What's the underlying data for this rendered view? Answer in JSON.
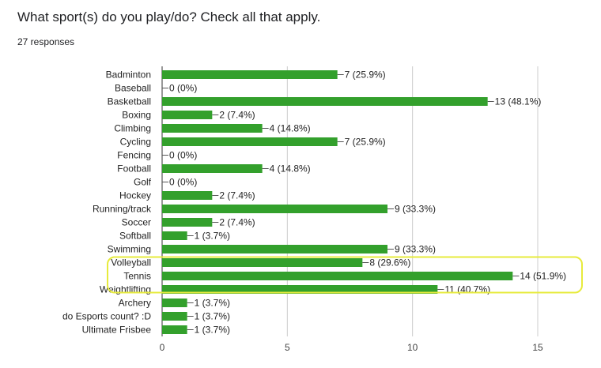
{
  "question": "What sport(s) do you play/do? Check all that apply.",
  "responses": "27 responses",
  "colors": {
    "bar": "#33a02c",
    "highlight": "#e7eb3c",
    "grid": "#cccccc",
    "axis": "#333333"
  },
  "chart_data": {
    "type": "bar",
    "orientation": "horizontal",
    "categories": [
      "Badminton",
      "Baseball",
      "Basketball",
      "Boxing",
      "Climbing",
      "Cycling",
      "Fencing",
      "Football",
      "Golf",
      "Hockey",
      "Running/track",
      "Soccer",
      "Softball",
      "Swimming",
      "Volleyball",
      "Tennis",
      "Weightlifting",
      "Archery",
      "do Esports count? :D",
      "Ultimate Frisbee"
    ],
    "values": [
      7,
      0,
      13,
      2,
      4,
      7,
      0,
      4,
      0,
      2,
      9,
      2,
      1,
      9,
      8,
      14,
      11,
      1,
      1,
      1
    ],
    "data_labels": [
      "7 (25.9%)",
      "0 (0%)",
      "13 (48.1%)",
      "2 (7.4%)",
      "4 (14.8%)",
      "7 (25.9%)",
      "0 (0%)",
      "4 (14.8%)",
      "0 (0%)",
      "2 (7.4%)",
      "9 (33.3%)",
      "2 (7.4%)",
      "1 (3.7%)",
      "9 (33.3%)",
      "8 (29.6%)",
      "14 (51.9%)",
      "11 (40.7%)",
      "1 (3.7%)",
      "1 (3.7%)",
      "1 (3.7%)"
    ],
    "xlim": [
      0,
      15
    ],
    "xticks": [
      "0",
      "5",
      "10",
      "15"
    ],
    "grid": true,
    "highlight": {
      "from_category": "Volleyball",
      "to_category": "Weightlifting"
    }
  }
}
